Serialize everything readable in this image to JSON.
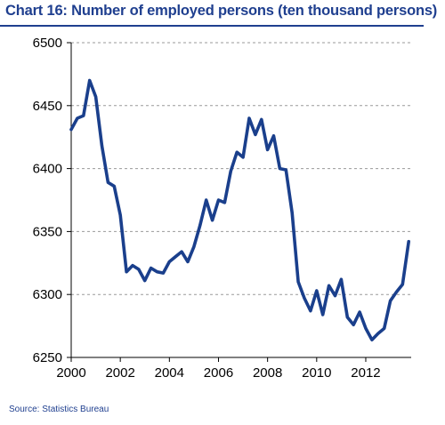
{
  "chart_data": {
    "type": "line",
    "title": "Chart 16: Number of employed persons (ten thousand persons)",
    "xlabel": "",
    "ylabel": "",
    "xlim": [
      2000,
      2013.85
    ],
    "ylim": [
      6250,
      6500
    ],
    "x_ticks": [
      2000,
      2002,
      2004,
      2006,
      2008,
      2010,
      2012
    ],
    "x_tick_labels": [
      "2000",
      "2002",
      "2004",
      "2006",
      "2008",
      "2010",
      "2012"
    ],
    "y_ticks": [
      6250,
      6300,
      6350,
      6400,
      6450,
      6500
    ],
    "y_tick_labels": [
      "6250",
      "6300",
      "6350",
      "6400",
      "6450",
      "6500"
    ],
    "grid": "horizontal dashed",
    "legend": "none",
    "series": [
      {
        "color": "#1a3f8c",
        "x": [
          2000.0,
          2000.25,
          2000.5,
          2000.75,
          2001.0,
          2001.25,
          2001.5,
          2001.75,
          2002.0,
          2002.25,
          2002.5,
          2002.75,
          2003.0,
          2003.25,
          2003.5,
          2003.75,
          2004.0,
          2004.25,
          2004.5,
          2004.75,
          2005.0,
          2005.25,
          2005.5,
          2005.75,
          2006.0,
          2006.25,
          2006.5,
          2006.75,
          2007.0,
          2007.25,
          2007.5,
          2007.75,
          2008.0,
          2008.25,
          2008.5,
          2008.75,
          2009.0,
          2009.25,
          2009.5,
          2009.75,
          2010.0,
          2010.25,
          2010.5,
          2010.75,
          2011.0,
          2011.25,
          2011.5,
          2011.75,
          2012.0,
          2012.25,
          2012.5,
          2012.75,
          2013.0,
          2013.25,
          2013.5,
          2013.75
        ],
        "y": [
          6431,
          6440,
          6442,
          6470,
          6457,
          6418,
          6389,
          6386,
          6363,
          6318,
          6323,
          6320,
          6311,
          6321,
          6318,
          6317,
          6326,
          6330,
          6334,
          6326,
          6338,
          6355,
          6375,
          6359,
          6375,
          6373,
          6398,
          6413,
          6409,
          6440,
          6427,
          6439,
          6415,
          6426,
          6400,
          6399,
          6365,
          6310,
          6297,
          6287,
          6303,
          6284,
          6307,
          6299,
          6312,
          6282,
          6276,
          6286,
          6273,
          6264,
          6269,
          6273,
          6295,
          6302,
          6308,
          6342
        ]
      }
    ]
  },
  "source_note": "Source: Statistics Bureau"
}
